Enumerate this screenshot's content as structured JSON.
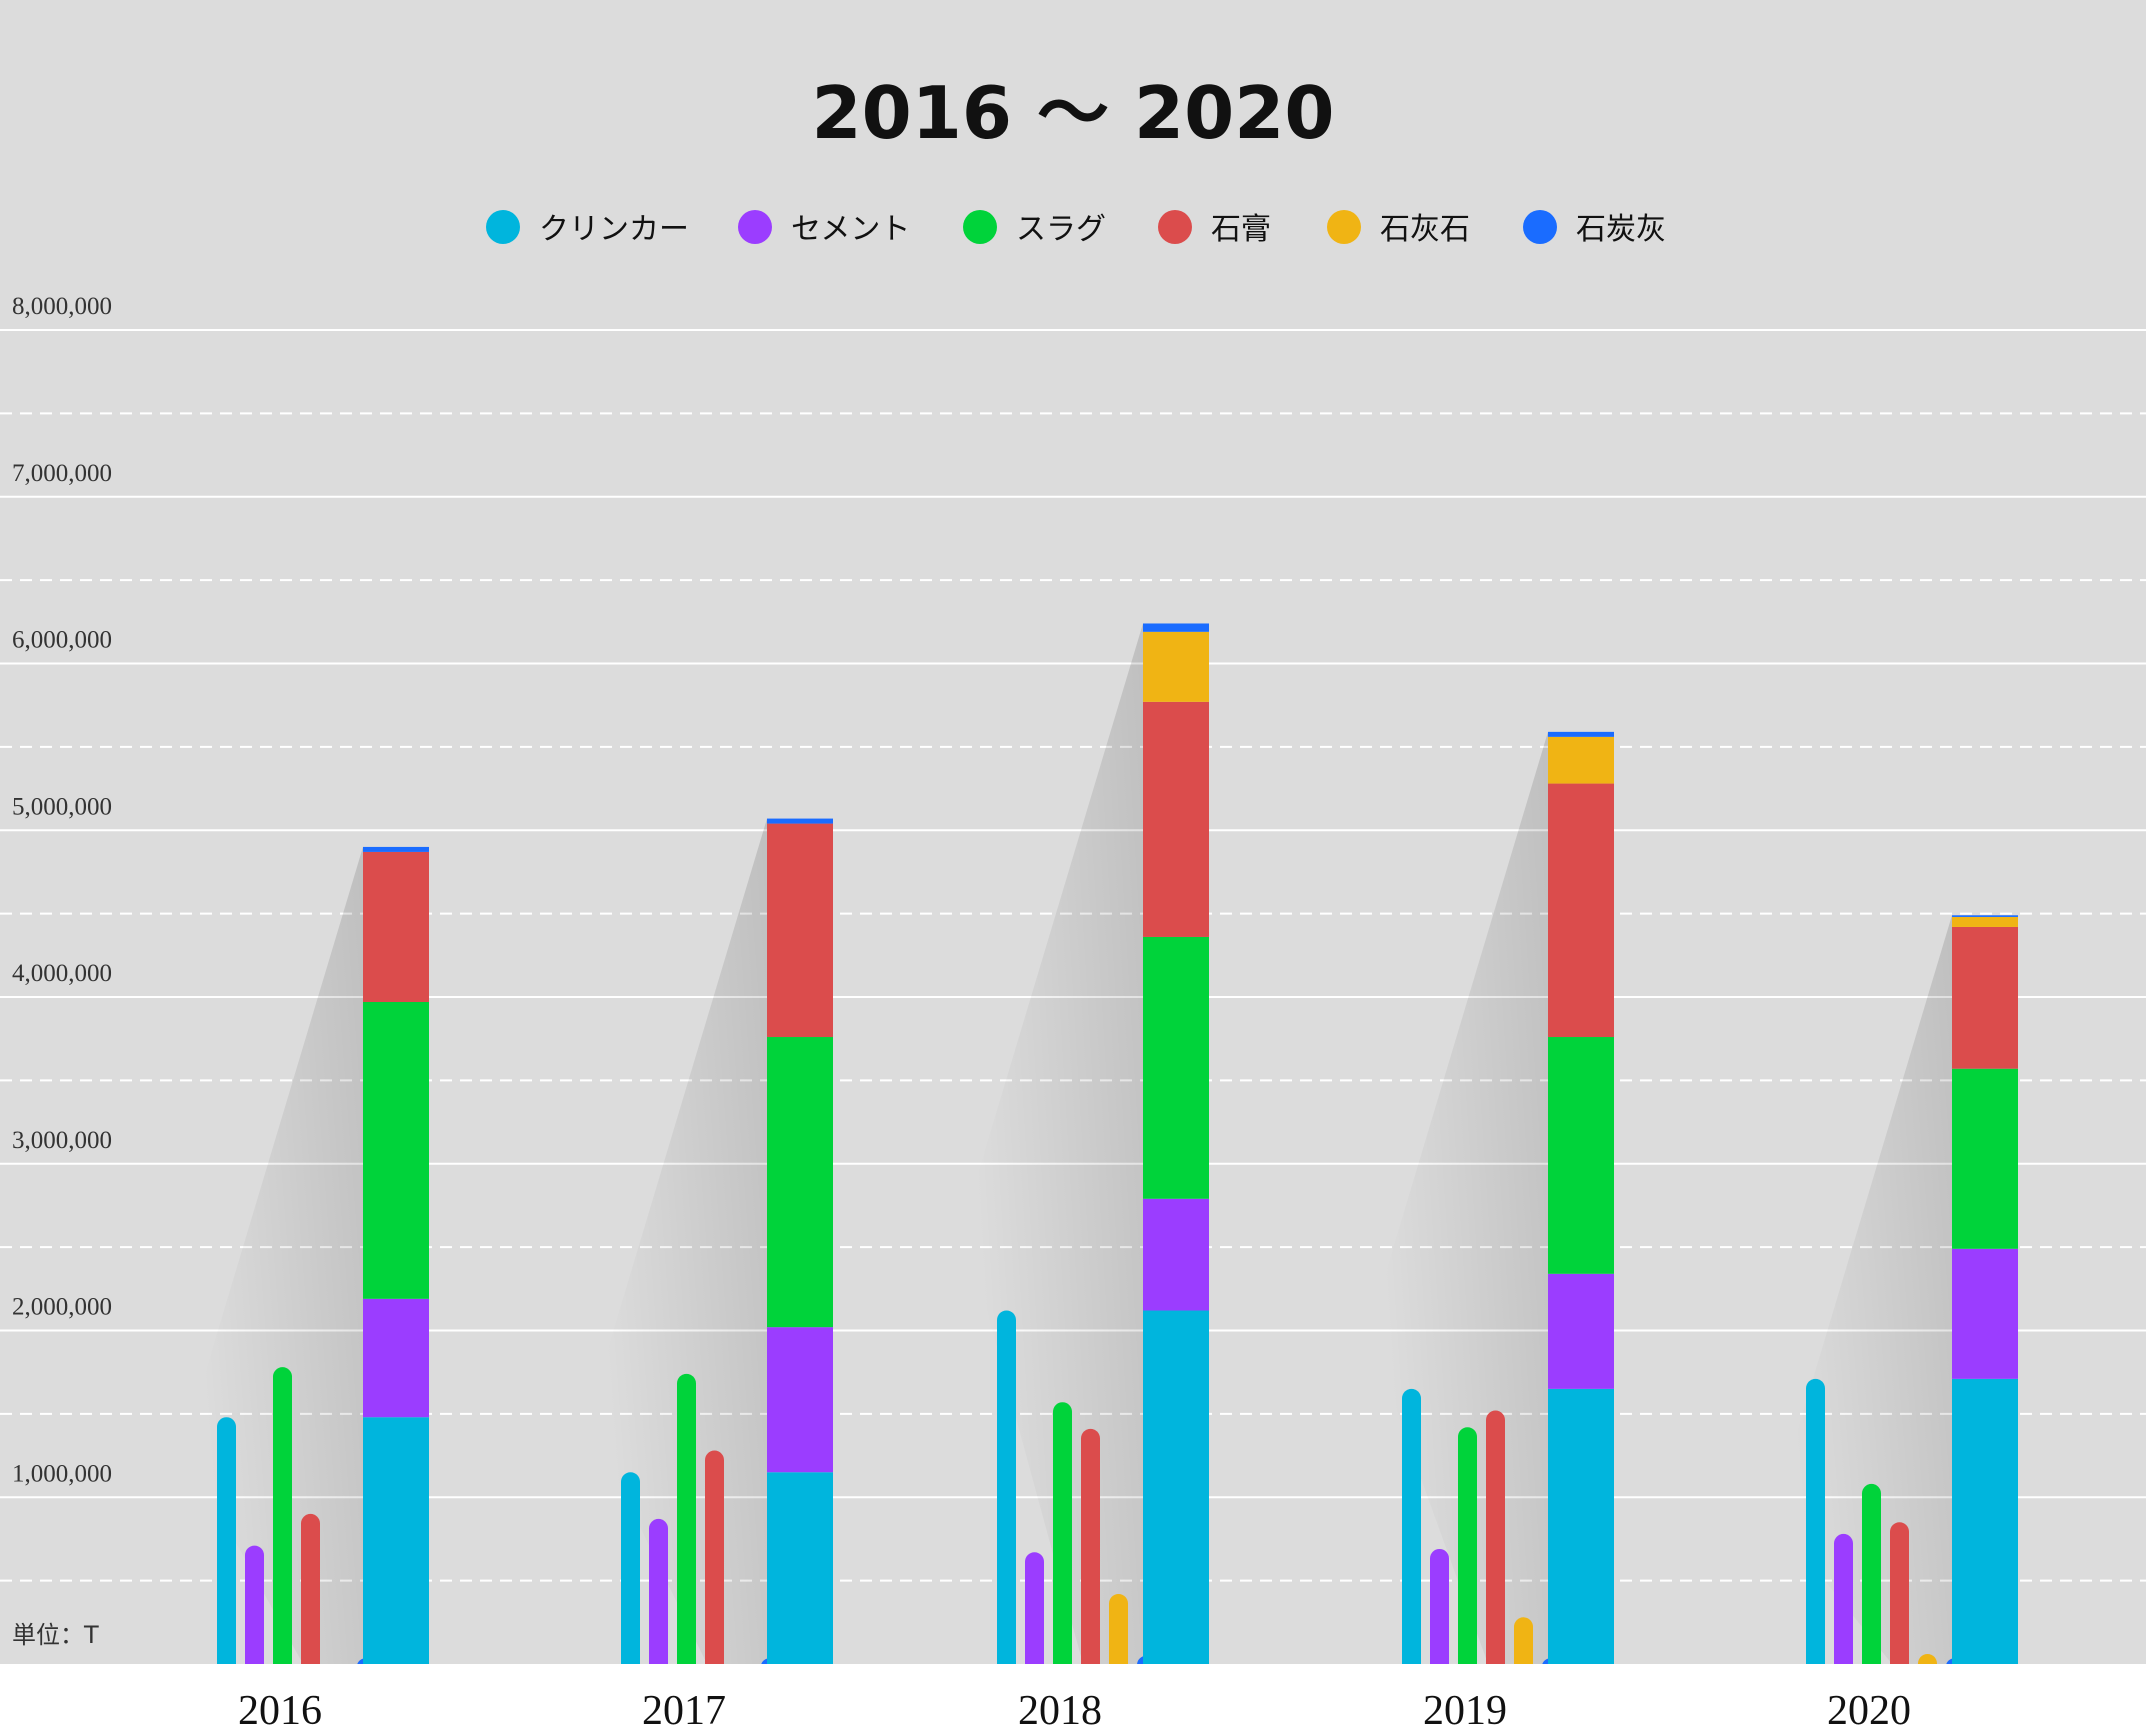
{
  "chart_data": {
    "type": "bar",
    "title": "2016 〜 2020",
    "unit_label": "単位：T",
    "categories": [
      "2016",
      "2017",
      "2018",
      "2019",
      "2020"
    ],
    "ylim": [
      0,
      8000000
    ],
    "y_ticks": [
      {
        "value": 8000000,
        "label": "8,000,000"
      },
      {
        "value": 7000000,
        "label": "7,000,000"
      },
      {
        "value": 6000000,
        "label": "6,000,000"
      },
      {
        "value": 5000000,
        "label": "5,000,000"
      },
      {
        "value": 4000000,
        "label": "4,000,000"
      },
      {
        "value": 3000000,
        "label": "3,000,000"
      },
      {
        "value": 2000000,
        "label": "2,000,000"
      },
      {
        "value": 1000000,
        "label": "1,000,000"
      }
    ],
    "grid": true,
    "legend_position": "top-center",
    "series": [
      {
        "name": "クリンカー",
        "color": "#00b5dd",
        "values": [
          1480000,
          1150000,
          2120000,
          1650000,
          1710000
        ]
      },
      {
        "name": "セメント",
        "color": "#9b3dff",
        "values": [
          710000,
          870000,
          670000,
          690000,
          780000
        ]
      },
      {
        "name": "スラグ",
        "color": "#00d33a",
        "values": [
          1780000,
          1740000,
          1570000,
          1420000,
          1080000
        ]
      },
      {
        "name": "石膏",
        "color": "#db4c4c",
        "values": [
          900000,
          1280000,
          1410000,
          1520000,
          850000
        ]
      },
      {
        "name": "石灰石",
        "color": "#f0b414",
        "values": [
          0,
          0,
          420000,
          280000,
          60000
        ]
      },
      {
        "name": "石炭灰",
        "color": "#1a6cff",
        "values": [
          30000,
          30000,
          50000,
          30000,
          10000
        ]
      }
    ]
  }
}
